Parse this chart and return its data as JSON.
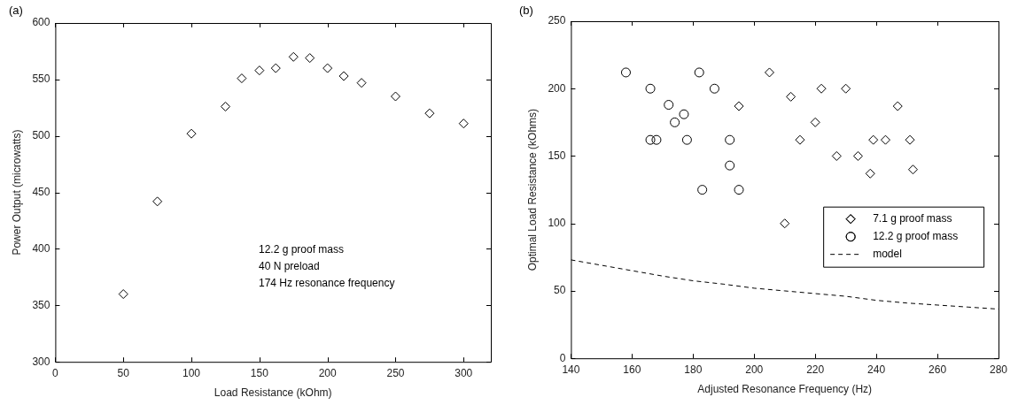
{
  "chart_data": [
    {
      "type": "scatter",
      "title": "(a)",
      "xlabel": "Load Resistance (kOhm)",
      "ylabel": "Power Output (microwatts)",
      "xlim": [
        0,
        320
      ],
      "xticks": [
        0,
        50,
        100,
        150,
        200,
        250,
        300
      ],
      "ylim": [
        300,
        600
      ],
      "yticks": [
        300,
        350,
        400,
        450,
        500,
        550,
        600
      ],
      "grid": false,
      "legend": false,
      "marker": "diamond",
      "annotations": [
        "12.2 g proof mass",
        "40 N preload",
        "174 Hz resonance frequency"
      ],
      "series": [
        {
          "color": "#000000",
          "x": [
            50,
            75,
            100,
            125,
            137,
            150,
            162,
            175,
            187,
            200,
            212,
            225,
            250,
            275,
            300
          ],
          "values": [
            360,
            442,
            502,
            526,
            551,
            558,
            560,
            570,
            569,
            560,
            553,
            547,
            535,
            520,
            511
          ]
        }
      ]
    },
    {
      "type": "scatter",
      "title": "(b)",
      "xlabel": "Adjusted Resonance Frequency (Hz)",
      "ylabel": "Optimal Load Resistance (kOhms)",
      "xlim": [
        140,
        280
      ],
      "xticks": [
        140,
        160,
        180,
        200,
        220,
        240,
        260,
        280
      ],
      "ylim": [
        0,
        250
      ],
      "yticks": [
        0,
        50,
        100,
        150,
        200,
        250
      ],
      "grid": false,
      "legend": "right",
      "series": [
        {
          "name": "7.1 g proof mass",
          "color": "#000000",
          "marker": "diamond",
          "x": [
            195,
            205,
            210,
            212,
            215,
            220,
            222,
            227,
            230,
            234,
            238,
            239,
            243,
            247,
            251,
            252
          ],
          "values": [
            187,
            212,
            100,
            194,
            162,
            175,
            200,
            150,
            200,
            150,
            137,
            162,
            162,
            187,
            162,
            140
          ]
        },
        {
          "name": "12.2 g proof mass",
          "color": "#000000",
          "marker": "circle",
          "x": [
            158,
            166,
            166,
            168,
            172,
            174,
            177,
            178,
            182,
            183,
            187,
            192,
            192,
            195
          ],
          "values": [
            212,
            200,
            162,
            162,
            188,
            175,
            181,
            162,
            212,
            125,
            200,
            162,
            143,
            125
          ]
        },
        {
          "name": "model",
          "type": "line",
          "color": "#000000",
          "marker": "none",
          "line_style": "dashed",
          "x": [
            140,
            150,
            160,
            170,
            180,
            190,
            200,
            210,
            220,
            230,
            240,
            250,
            260,
            270,
            280
          ],
          "values": [
            73,
            69,
            65,
            61,
            57.5,
            55,
            52,
            50,
            48,
            46,
            43,
            41,
            39.5,
            38,
            36.5
          ]
        }
      ]
    }
  ]
}
